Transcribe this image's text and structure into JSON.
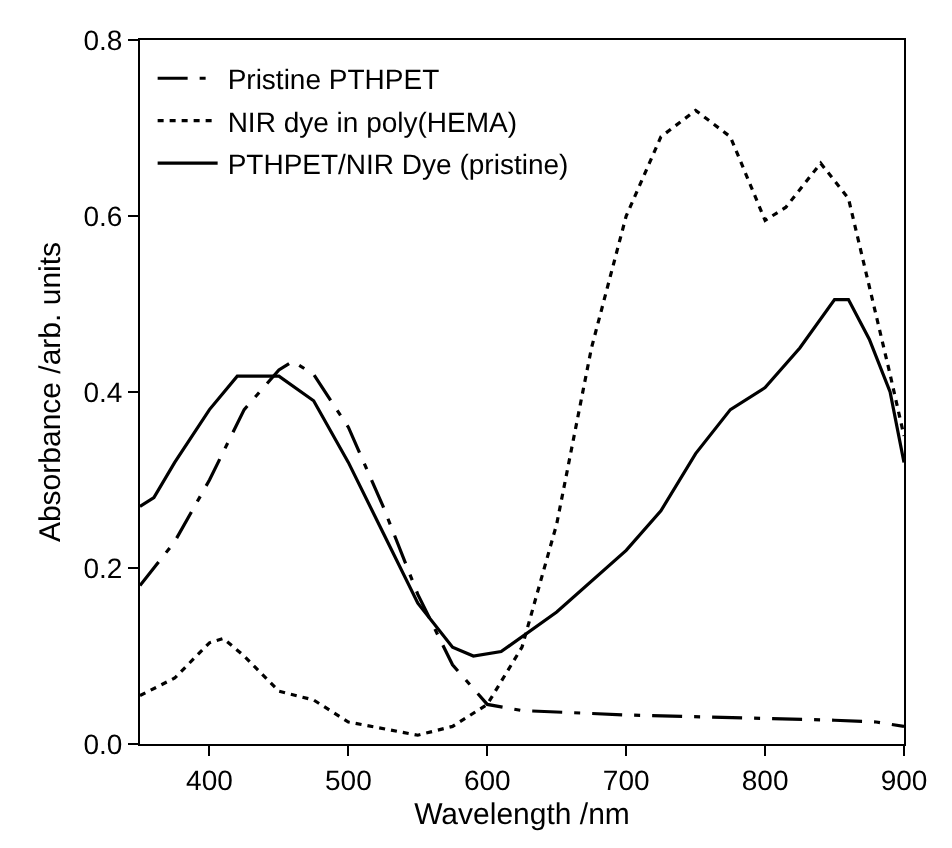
{
  "chart_data": {
    "type": "line",
    "xlabel": "Wavelength /nm",
    "ylabel": "Absorbance /arb. units",
    "xlim": [
      350,
      900
    ],
    "xticks": [
      400,
      500,
      600,
      700,
      800,
      900
    ],
    "ylim": [
      0,
      0.8
    ],
    "yticks": [
      {
        "value": 0,
        "label": "0.0"
      },
      {
        "value": 0.2,
        "label": "0.2"
      },
      {
        "value": 0.4,
        "label": "0.4"
      },
      {
        "value": 0.6,
        "label": "0.6"
      },
      {
        "value": 0.8,
        "label": "0.8"
      }
    ],
    "grid": false,
    "legend": "top left",
    "marker": "none",
    "series": [
      {
        "name": "Pristine PTHPET",
        "color": "#000000",
        "line_style": "dashed",
        "x": [
          350,
          375,
          400,
          425,
          450,
          460,
          475,
          500,
          525,
          550,
          575,
          600,
          625,
          700,
          800,
          850,
          880,
          900
        ],
        "values": [
          0.18,
          0.23,
          0.3,
          0.38,
          0.425,
          0.435,
          0.42,
          0.36,
          0.27,
          0.17,
          0.09,
          0.045,
          0.038,
          0.033,
          0.029,
          0.027,
          0.025,
          0.02
        ]
      },
      {
        "name": "NIR dye in poly(HEMA)",
        "color": "#000000",
        "line_style": "dotted",
        "x": [
          350,
          375,
          400,
          410,
          425,
          450,
          475,
          500,
          550,
          575,
          600,
          625,
          650,
          675,
          700,
          725,
          750,
          775,
          800,
          815,
          840,
          860,
          875,
          890,
          900
        ],
        "values": [
          0.055,
          0.075,
          0.115,
          0.12,
          0.1,
          0.06,
          0.05,
          0.025,
          0.01,
          0.02,
          0.045,
          0.11,
          0.25,
          0.45,
          0.6,
          0.69,
          0.72,
          0.69,
          0.595,
          0.61,
          0.66,
          0.62,
          0.52,
          0.42,
          0.35
        ]
      },
      {
        "name": "PTHPET/NIR Dye (pristine)",
        "color": "#000000",
        "line_style": "solid",
        "x": [
          350,
          360,
          375,
          400,
          420,
          450,
          475,
          500,
          525,
          550,
          575,
          590,
          610,
          650,
          700,
          725,
          750,
          775,
          800,
          825,
          850,
          860,
          875,
          890,
          900
        ],
        "values": [
          0.27,
          0.28,
          0.32,
          0.38,
          0.418,
          0.418,
          0.39,
          0.32,
          0.24,
          0.16,
          0.11,
          0.1,
          0.105,
          0.15,
          0.22,
          0.265,
          0.33,
          0.38,
          0.405,
          0.45,
          0.505,
          0.505,
          0.46,
          0.4,
          0.32
        ]
      }
    ]
  }
}
